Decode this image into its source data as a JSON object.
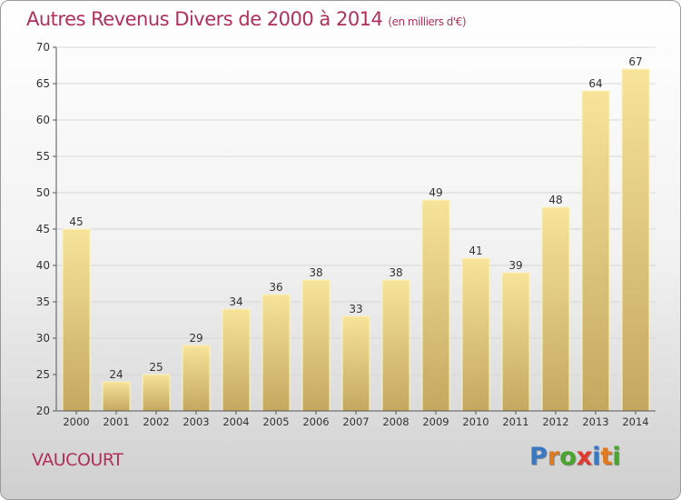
{
  "chart_data": {
    "type": "bar",
    "title": "Autres Revenus Divers de 2000 à 2014",
    "unit_label": "(en milliers d'€)",
    "categories": [
      "2000",
      "2001",
      "2002",
      "2003",
      "2004",
      "2005",
      "2006",
      "2007",
      "2008",
      "2009",
      "2010",
      "2011",
      "2012",
      "2013",
      "2014"
    ],
    "values": [
      45,
      24,
      25,
      29,
      34,
      36,
      38,
      33,
      38,
      49,
      41,
      39,
      48,
      64,
      67
    ],
    "ylim": [
      20,
      70
    ],
    "yticks": [
      20,
      25,
      30,
      35,
      40,
      45,
      50,
      55,
      60,
      65,
      70
    ],
    "grid": true,
    "bar_color_top": "#f7e39a",
    "bar_color_bottom": "#c4a860",
    "bar_edge": "#fff4b8"
  },
  "commune": "VAUCOURT",
  "logo": {
    "letters": [
      "P",
      "r",
      "o",
      "x",
      "i",
      "t",
      "i"
    ],
    "colors": [
      "#3a78c2",
      "#e07a1f",
      "#4aa52e",
      "#e03a2e",
      "#3a78c2",
      "#e07a1f",
      "#4aa52e"
    ]
  },
  "colors": {
    "accent": "#b0305a",
    "axis": "#555555",
    "grid": "#d6d6d6"
  }
}
